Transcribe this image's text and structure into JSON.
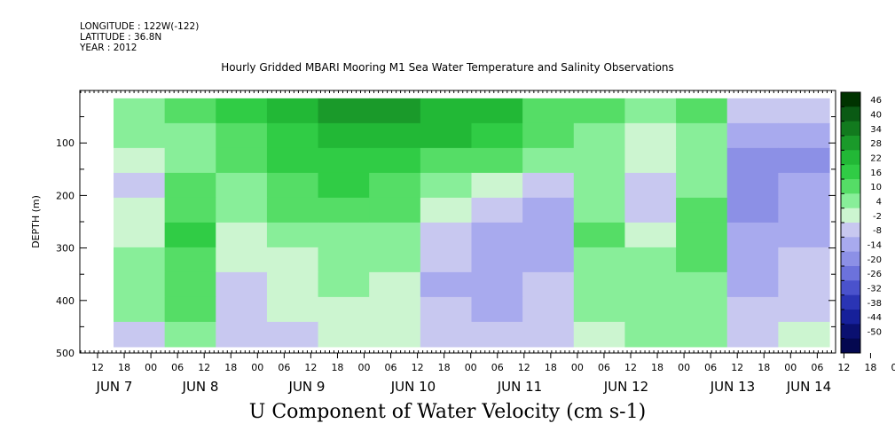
{
  "header": {
    "longitude": "LONGITUDE : 122W(-122)",
    "latitude": "LATITUDE : 36.8N",
    "year": "YEAR : 2012",
    "title": "Hourly Gridded MBARI Mooring M1 Sea Water Temperature and Salinity Observations"
  },
  "footer": {
    "variable_title": "U Component of Water Velocity (cm s-1)"
  },
  "chart_data": {
    "type": "heatmap",
    "title": "Hourly Gridded MBARI Mooring M1 Sea Water Temperature and Salinity Observations",
    "variable": "U Component of Water Velocity (cm s-1)",
    "ylabel": "DEPTH (m)",
    "ylim": [
      500,
      0
    ],
    "y_ticks": [
      100,
      200,
      300,
      400,
      500
    ],
    "x_hour_ticks": [
      "12",
      "18",
      "00",
      "06",
      "12",
      "18",
      "00",
      "06",
      "12",
      "18",
      "00",
      "06",
      "12",
      "18",
      "00",
      "06",
      "12",
      "18",
      "00",
      "06",
      "12",
      "18",
      "00",
      "06",
      "12",
      "18",
      "00",
      "06",
      "12",
      "18",
      "00",
      "06"
    ],
    "x_date_labels": [
      "JUN  7",
      "JUN  8",
      "JUN  9",
      "JUN 10",
      "JUN 11",
      "JUN 12",
      "JUN 13",
      "JUN 14"
    ],
    "colorbar": {
      "levels": [
        46,
        40,
        34,
        28,
        22,
        16,
        10,
        4,
        -2,
        -8,
        -14,
        -20,
        -26,
        -32,
        -38,
        -44,
        -50
      ],
      "colors": [
        "#003300",
        "#0a5a14",
        "#127a1e",
        "#1a9a2a",
        "#22b836",
        "#30cc45",
        "#55dd66",
        "#88ee99",
        "#ccf5d0",
        "#c8c8f0",
        "#a8aaee",
        "#8c90e6",
        "#6c72dc",
        "#4a52cc",
        "#2a34b4",
        "#16209a",
        "#0a1070",
        "#040850"
      ]
    },
    "x": [
      "Jun 7 12:00",
      "Jun 8 00:00",
      "Jun 8 12:00",
      "Jun 9 00:00",
      "Jun 9 12:00",
      "Jun 10 00:00",
      "Jun 10 12:00",
      "Jun 11 00:00",
      "Jun 11 12:00",
      "Jun 12 00:00",
      "Jun 12 12:00",
      "Jun 13 00:00",
      "Jun 13 12:00",
      "Jun 14 00:00"
    ],
    "depth": [
      25,
      75,
      125,
      175,
      225,
      275,
      325,
      375,
      425,
      475
    ],
    "values": [
      [
        8,
        12,
        18,
        25,
        28,
        30,
        26,
        22,
        14,
        10,
        6,
        12,
        -8,
        -6
      ],
      [
        4,
        8,
        14,
        20,
        24,
        26,
        22,
        16,
        12,
        8,
        2,
        8,
        -14,
        -12
      ],
      [
        0,
        4,
        10,
        16,
        20,
        18,
        14,
        10,
        6,
        4,
        -2,
        4,
        -20,
        -16
      ],
      [
        -4,
        10,
        6,
        12,
        16,
        14,
        8,
        0,
        -6,
        6,
        -6,
        8,
        -18,
        -14
      ],
      [
        -2,
        14,
        4,
        10,
        12,
        10,
        2,
        -8,
        -10,
        8,
        -4,
        12,
        -16,
        -12
      ],
      [
        2,
        16,
        2,
        6,
        8,
        6,
        -4,
        -12,
        -12,
        10,
        -2,
        14,
        -14,
        -10
      ],
      [
        4,
        14,
        -2,
        2,
        6,
        4,
        -8,
        -14,
        -10,
        8,
        4,
        10,
        -12,
        -8
      ],
      [
        6,
        12,
        -4,
        0,
        4,
        2,
        -10,
        -12,
        -8,
        6,
        6,
        8,
        -10,
        -6
      ],
      [
        8,
        10,
        -6,
        -2,
        2,
        0,
        -8,
        -10,
        -6,
        4,
        8,
        6,
        -8,
        -4
      ],
      [
        -4,
        6,
        -8,
        -4,
        0,
        -2,
        -6,
        -8,
        -4,
        2,
        6,
        4,
        -6,
        -2
      ]
    ]
  }
}
